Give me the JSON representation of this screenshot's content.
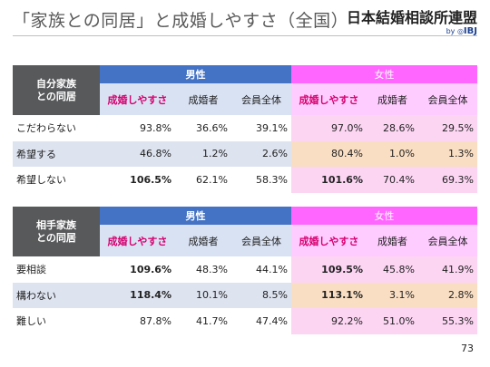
{
  "header": {
    "title": "「家族との同居」と成婚しやすさ（全国）",
    "logo_text": "日本結婚相談所連盟",
    "logo_by": "by",
    "logo_ibj": "IBJ"
  },
  "tables": [
    {
      "label": [
        "自分家族",
        "との同居"
      ],
      "male_label": "男性",
      "female_label": "女性",
      "columns": [
        "成婚しやすさ",
        "成婚者",
        "会員全体",
        "成婚しやすさ",
        "成婚者",
        "会員全体"
      ],
      "rows": [
        {
          "label": "こだわらない",
          "values": [
            "93.8%",
            "36.6%",
            "39.1%",
            "97.0%",
            "28.6%",
            "29.5%"
          ]
        },
        {
          "label": "希望する",
          "values": [
            "46.8%",
            "1.2%",
            "2.6%",
            "80.4%",
            "1.0%",
            "1.3%"
          ]
        },
        {
          "label": "希望しない",
          "values": [
            "106.5%",
            "62.1%",
            "58.3%",
            "101.6%",
            "70.4%",
            "69.3%"
          ]
        }
      ]
    },
    {
      "label": [
        "相手家族",
        "との同居"
      ],
      "male_label": "男性",
      "female_label": "女性",
      "columns": [
        "成婚しやすさ",
        "成婚者",
        "会員全体",
        "成婚しやすさ",
        "成婚者",
        "会員全体"
      ],
      "rows": [
        {
          "label": "要相談",
          "values": [
            "109.6%",
            "48.3%",
            "44.1%",
            "109.5%",
            "45.8%",
            "41.9%"
          ]
        },
        {
          "label": "構わない",
          "values": [
            "118.4%",
            "10.1%",
            "8.5%",
            "113.1%",
            "3.1%",
            "2.8%"
          ]
        },
        {
          "label": "難しい",
          "values": [
            "87.8%",
            "41.7%",
            "47.4%",
            "92.2%",
            "51.0%",
            "55.3%"
          ]
        }
      ]
    }
  ],
  "page_number": "73",
  "colors": {
    "male_header": "#4472c4",
    "female_header": "#ff66ff",
    "label_block": "#58595b",
    "highlight_text": "#d6006f"
  }
}
